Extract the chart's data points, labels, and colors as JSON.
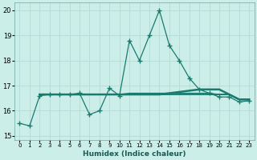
{
  "xlabel": "Humidex (Indice chaleur)",
  "bg_color": "#cceee8",
  "grid_color": "#b8ddd8",
  "line_color": "#1a7a6e",
  "xlim": [
    -0.5,
    23.5
  ],
  "ylim": [
    14.85,
    20.3
  ],
  "xticks": [
    0,
    1,
    2,
    3,
    4,
    5,
    6,
    7,
    8,
    9,
    10,
    11,
    12,
    13,
    14,
    15,
    16,
    17,
    18,
    19,
    20,
    21,
    22,
    23
  ],
  "yticks": [
    15,
    16,
    17,
    18,
    19,
    20
  ],
  "line1_x": [
    0,
    1,
    2,
    3,
    4,
    5,
    6,
    7,
    8,
    9,
    10,
    11,
    12,
    13,
    14,
    15,
    16,
    17,
    18,
    19,
    20,
    21,
    22,
    23
  ],
  "line1_y": [
    15.5,
    15.4,
    16.6,
    16.65,
    16.65,
    16.65,
    16.7,
    15.85,
    16.0,
    16.9,
    16.6,
    18.8,
    18.0,
    19.0,
    20.0,
    18.6,
    18.0,
    17.3,
    16.85,
    16.7,
    16.55,
    16.55,
    16.35,
    16.4
  ],
  "line2_x": [
    2,
    3,
    4,
    5,
    6,
    7,
    8,
    9,
    10,
    11,
    12,
    13,
    14,
    15,
    16,
    17,
    18,
    19,
    20,
    21,
    22,
    23
  ],
  "line2_y": [
    16.65,
    16.65,
    16.65,
    16.65,
    16.65,
    16.65,
    16.65,
    16.65,
    16.65,
    16.65,
    16.65,
    16.65,
    16.65,
    16.7,
    16.75,
    16.8,
    16.85,
    16.85,
    16.85,
    16.65,
    16.45,
    16.45
  ],
  "line3_x": [
    2,
    3,
    4,
    5,
    6,
    7,
    8,
    9,
    10,
    11,
    12,
    13,
    14,
    15,
    16,
    17,
    18,
    19,
    20,
    21,
    22,
    23
  ],
  "line3_y": [
    16.65,
    16.65,
    16.65,
    16.65,
    16.65,
    16.65,
    16.65,
    16.65,
    16.65,
    16.65,
    16.65,
    16.65,
    16.65,
    16.65,
    16.65,
    16.65,
    16.65,
    16.65,
    16.65,
    16.65,
    16.45,
    16.45
  ],
  "line4_x": [
    2,
    3,
    4,
    5,
    6,
    7,
    8,
    9,
    10,
    11,
    12,
    13,
    14,
    15,
    16,
    17,
    18,
    19,
    20,
    21,
    22,
    23
  ],
  "line4_y": [
    16.65,
    16.65,
    16.65,
    16.65,
    16.65,
    16.65,
    16.65,
    16.65,
    16.65,
    16.7,
    16.7,
    16.7,
    16.7,
    16.7,
    16.7,
    16.7,
    16.7,
    16.7,
    16.65,
    16.65,
    16.45,
    16.45
  ],
  "line5_x": [
    2,
    3,
    4,
    5,
    6,
    7,
    8,
    9,
    10,
    11,
    12,
    13,
    14,
    15,
    16,
    17,
    18,
    19,
    20,
    21,
    22,
    23
  ],
  "line5_y": [
    16.65,
    16.65,
    16.65,
    16.65,
    16.65,
    16.65,
    16.65,
    16.65,
    16.65,
    16.65,
    16.65,
    16.65,
    16.65,
    16.65,
    16.65,
    16.65,
    16.65,
    16.65,
    16.65,
    16.65,
    16.45,
    16.45
  ]
}
